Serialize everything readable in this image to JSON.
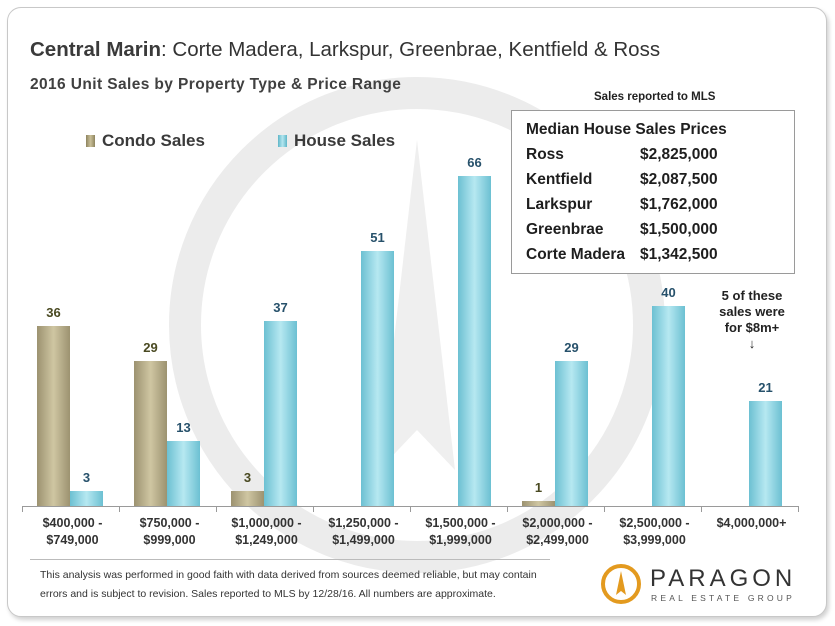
{
  "header": {
    "title_prefix": "Central Marin",
    "title_rest": ": Corte Madera, Larkspur, Greenbrae, Kentfield & Ross",
    "subtitle": "2016 Unit Sales by Property Type & Price Range"
  },
  "legend": {
    "condo": "Condo Sales",
    "house": "House Sales"
  },
  "median_panel": {
    "note": "Sales reported to MLS",
    "heading": "Median House Sales Prices",
    "rows": [
      {
        "town": "Ross",
        "price": "$2,825,000"
      },
      {
        "town": "Kentfield",
        "price": "$2,087,500"
      },
      {
        "town": "Larkspur",
        "price": "$1,762,000"
      },
      {
        "town": "Greenbrae",
        "price": "$1,500,000"
      },
      {
        "town": "Corte Madera",
        "price": "$1,342,500"
      }
    ]
  },
  "annotation": {
    "line1": "5 of these",
    "line2": "sales were",
    "line3": "for $8m+",
    "arrow": "↓"
  },
  "footer": {
    "line1": "This analysis was performed in good faith with data derived from sources deemed reliable, but may contain",
    "line2": "errors and is subject to revision. Sales reported to MLS by 12/28/16. All numbers are approximate."
  },
  "logo": {
    "name": "PARAGON",
    "tagline": "REAL ESTATE GROUP"
  },
  "colors": {
    "condo": "#a59a74",
    "house": "#7fc9d8",
    "condo_label": "#4a4a22",
    "house_label": "#27516b"
  },
  "chart_data": {
    "type": "bar",
    "title": "2016 Unit Sales by Property Type & Price Range",
    "ylim": [
      0,
      70
    ],
    "categories": [
      [
        "$400,000 -",
        "$749,000"
      ],
      [
        "$750,000 -",
        "$999,000"
      ],
      [
        "$1,000,000 -",
        "$1,249,000"
      ],
      [
        "$1,250,000 -",
        "$1,499,000"
      ],
      [
        "$1,500,000 -",
        "$1,999,000"
      ],
      [
        "$2,000,000 -",
        "$2,499,000"
      ],
      [
        "$2,500,000 -",
        "$3,999,000"
      ],
      [
        "$4,000,000+"
      ]
    ],
    "series": [
      {
        "name": "Condo Sales",
        "values": [
          36,
          29,
          3,
          null,
          null,
          1,
          null,
          null
        ]
      },
      {
        "name": "House Sales",
        "values": [
          3,
          13,
          37,
          51,
          66,
          29,
          40,
          21
        ]
      }
    ],
    "grid": false,
    "legend_position": "top-left"
  }
}
